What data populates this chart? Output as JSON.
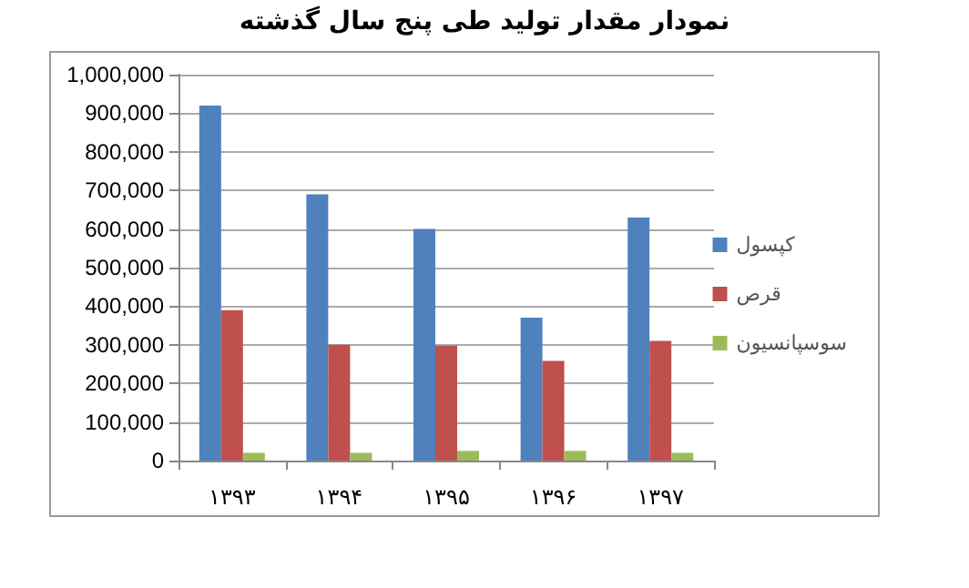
{
  "chart_data": {
    "type": "bar",
    "title": "نمودار مقدار تولید طی پنج سال گذشته",
    "categories": [
      "۱۳۹۳",
      "۱۳۹۴",
      "۱۳۹۵",
      "۱۳۹۶",
      "۱۳۹۷"
    ],
    "series": [
      {
        "name": "کپسول",
        "color": "#4f81bd",
        "values": [
          920000,
          690000,
          600000,
          370000,
          630000
        ]
      },
      {
        "name": "قرص",
        "color": "#c0504d",
        "values": [
          390000,
          300000,
          298000,
          258000,
          310000
        ]
      },
      {
        "name": "سوسپانسیون",
        "color": "#9bbb59",
        "values": [
          20000,
          20000,
          25000,
          25000,
          20000
        ]
      }
    ],
    "ylim": [
      0,
      1000000
    ],
    "yticks": [
      0,
      {
        "value": 100000,
        "label": "100,000"
      },
      {
        "value": 200000,
        "label": "200,000"
      },
      {
        "value": 300000,
        "label": "300,000"
      },
      {
        "value": 400000,
        "label": "400,000"
      },
      {
        "value": 500000,
        "label": "500,000"
      },
      {
        "value": 600000,
        "label": "600,000"
      },
      {
        "value": 700000,
        "label": "700,000"
      },
      {
        "value": 800000,
        "label": "800,000"
      },
      {
        "value": 900000,
        "label": "900,000"
      },
      {
        "value": 1000000,
        "label": "1,000,000"
      }
    ],
    "grid": "y",
    "legend": "right"
  }
}
